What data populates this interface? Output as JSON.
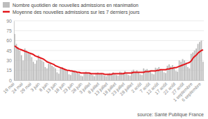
{
  "chart_data": {
    "type": "bar",
    "source": "source: Santé Publique France",
    "categories": [
      "19 mai",
      null,
      null,
      null,
      null,
      "24 mai",
      null,
      null,
      null,
      null,
      "29 mai",
      null,
      null,
      null,
      null,
      "3 juin",
      null,
      null,
      null,
      null,
      "8 juin",
      null,
      null,
      null,
      null,
      "13 juin",
      null,
      null,
      null,
      null,
      "18 juin",
      null,
      null,
      null,
      null,
      "23 juin",
      null,
      null,
      null,
      null,
      "28 juin",
      null,
      null,
      null,
      null,
      "3 juillet",
      null,
      null,
      null,
      null,
      "8 juillet",
      null,
      null,
      null,
      null,
      "13 juillet",
      null,
      null,
      null,
      null,
      "18 juillet",
      null,
      null,
      null,
      null,
      "23 juillet",
      null,
      null,
      null,
      null,
      "28 juillet",
      null,
      null,
      null,
      null,
      "2 août",
      null,
      null,
      null,
      null,
      "7 août",
      null,
      null,
      null,
      null,
      "12 août",
      null,
      null,
      null,
      null,
      "17 août",
      null,
      null,
      null,
      null,
      "22 août",
      null,
      null,
      null,
      null,
      "27 août",
      null,
      null,
      null,
      null,
      "1 septembre",
      null,
      null,
      null,
      null,
      "6 septembre",
      null
    ],
    "series": [
      {
        "name": "Nombre quotidien de nouvelles admissions en réanimation",
        "type": "bar",
        "color": "#bdbdbd",
        "values": [
          70,
          55,
          50,
          45,
          38,
          30,
          48,
          45,
          42,
          40,
          35,
          28,
          25,
          30,
          38,
          32,
          30,
          28,
          20,
          18,
          25,
          26,
          22,
          20,
          18,
          12,
          10,
          18,
          20,
          16,
          15,
          14,
          9,
          8,
          14,
          15,
          12,
          11,
          10,
          7,
          6,
          12,
          13,
          12,
          11,
          10,
          8,
          6,
          11,
          12,
          10,
          11,
          9,
          7,
          6,
          10,
          11,
          9,
          12,
          10,
          8,
          7,
          13,
          12,
          11,
          14,
          10,
          8,
          7,
          14,
          16,
          13,
          15,
          12,
          9,
          8,
          18,
          16,
          17,
          15,
          14,
          10,
          9,
          19,
          18,
          20,
          17,
          16,
          12,
          11,
          22,
          24,
          21,
          23,
          20,
          14,
          13,
          30,
          28,
          32,
          30,
          27,
          20,
          18,
          40,
          42,
          45,
          48,
          55,
          58,
          60,
          28
        ]
      },
      {
        "name": "Moyenne des nouvelles admissions sur les 7 derniers jours",
        "type": "line",
        "color": "#e3161b",
        "values": [
          52,
          50,
          48,
          47,
          46,
          45,
          44,
          43,
          42,
          41,
          40,
          39,
          37,
          36,
          35,
          34,
          33,
          32,
          30,
          28,
          27,
          26,
          25,
          24,
          22,
          21,
          20,
          19,
          18,
          17,
          16,
          15,
          15,
          14,
          14,
          13,
          13,
          12,
          12,
          11,
          11,
          11,
          11,
          11,
          11,
          10,
          10,
          10,
          10,
          10,
          10,
          10,
          10,
          9,
          9,
          9,
          9,
          9,
          10,
          10,
          10,
          10,
          10,
          10,
          10,
          11,
          11,
          11,
          11,
          11,
          12,
          12,
          12,
          12,
          12,
          12,
          12,
          13,
          13,
          13,
          14,
          14,
          14,
          14,
          15,
          15,
          16,
          16,
          16,
          16,
          17,
          17,
          18,
          18,
          19,
          19,
          20,
          21,
          22,
          23,
          24,
          25,
          26,
          27,
          29,
          33,
          36,
          38,
          41,
          43,
          45,
          46
        ]
      }
    ],
    "ylim": [
      0,
      90
    ],
    "yticks": [
      0,
      15,
      30,
      45,
      60,
      75,
      90
    ],
    "grid": true,
    "legend": "top"
  }
}
